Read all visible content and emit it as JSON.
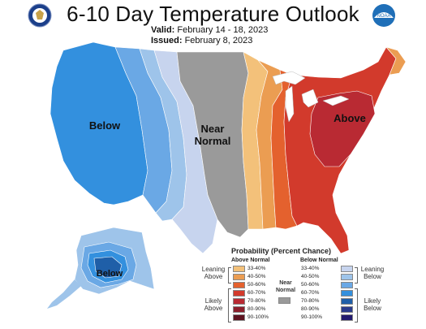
{
  "header": {
    "title": "6-10 Day Temperature Outlook",
    "valid_label": "Valid:",
    "valid_value": "February 14 - 18, 2023",
    "issued_label": "Issued:",
    "issued_value": "February 8, 2023"
  },
  "logos": {
    "left": "doc-seal-icon",
    "right": "noaa-logo-icon",
    "right_text": "NOAA"
  },
  "map": {
    "labels": {
      "west": "Below",
      "central_line1": "Near",
      "central_line2": "Normal",
      "east": "Above",
      "alaska": "Below"
    }
  },
  "legend": {
    "title": "Probability (Percent Chance)",
    "above_header": "Above Normal",
    "below_header": "Below Normal",
    "near_label_line1": "Near",
    "near_label_line2": "Normal",
    "leaning_above_1": "Leaning",
    "leaning_above_2": "Above",
    "likely_above_1": "Likely",
    "likely_above_2": "Above",
    "leaning_below_1": "Leaning",
    "leaning_below_2": "Below",
    "likely_below_1": "Likely",
    "likely_below_2": "Below",
    "above_bins": [
      {
        "label": "33-40%",
        "color": "#f3c17a"
      },
      {
        "label": "40-50%",
        "color": "#eb9d52"
      },
      {
        "label": "50-60%",
        "color": "#e4612e"
      },
      {
        "label": "60-70%",
        "color": "#d23a2c"
      },
      {
        "label": "70-80%",
        "color": "#b92a33"
      },
      {
        "label": "80-90%",
        "color": "#8c1f2c"
      },
      {
        "label": "90-100%",
        "color": "#5e1320"
      }
    ],
    "below_bins": [
      {
        "label": "33-40%",
        "color": "#c7d4ee"
      },
      {
        "label": "40-50%",
        "color": "#9ec4ea"
      },
      {
        "label": "50-60%",
        "color": "#6aa8e5"
      },
      {
        "label": "60-70%",
        "color": "#3390de"
      },
      {
        "label": "70-80%",
        "color": "#1f5fa8"
      },
      {
        "label": "80-90%",
        "color": "#2a3b8c"
      },
      {
        "label": "90-100%",
        "color": "#221a6e"
      }
    ],
    "near_color": "#9a9a9a"
  }
}
